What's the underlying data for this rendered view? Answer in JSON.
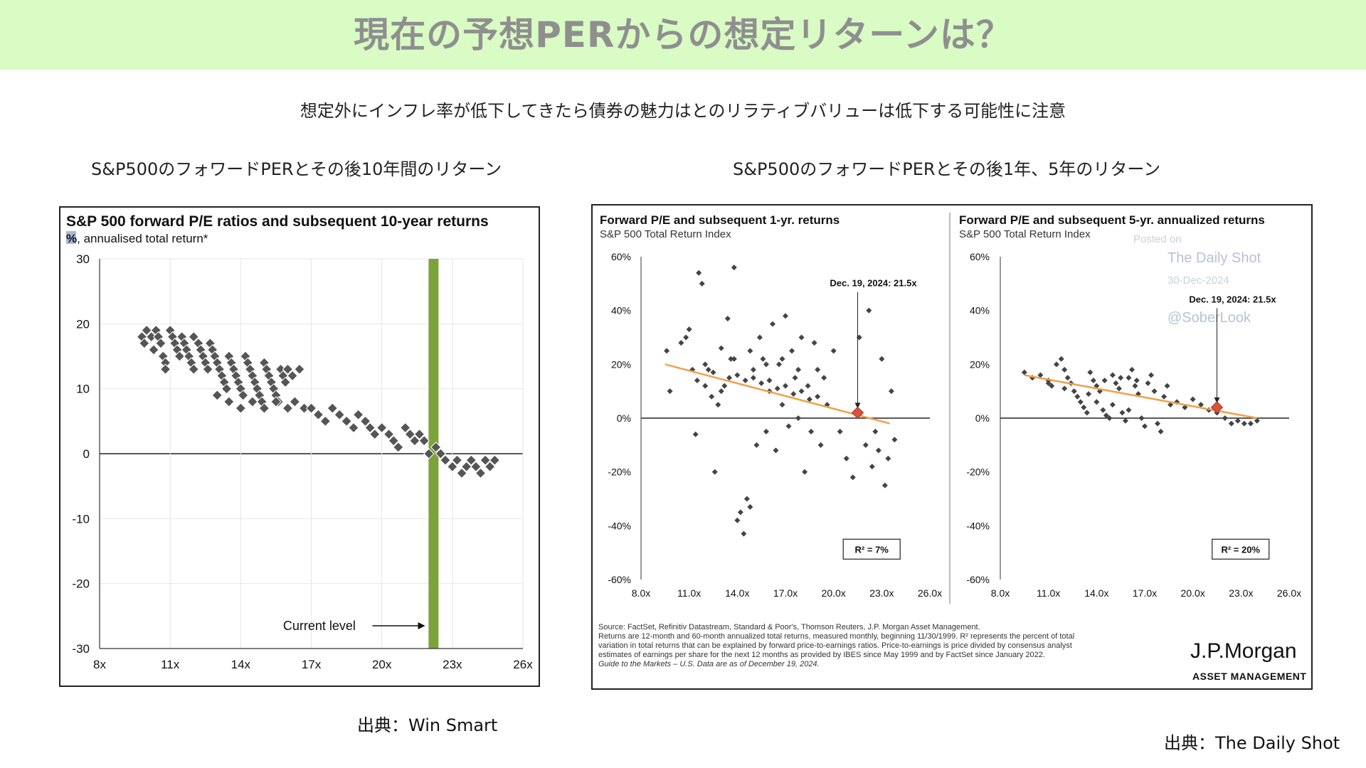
{
  "header": {
    "title": "現在の予想PERからの想定リターンは？"
  },
  "subtitle": "想定外にインフレ率が低下してきたら債券の魅力はとのリラティブバリューは低下する可能性に注意",
  "left_caption": "S&P500のフォワードPERとその後10年間のリターン",
  "right_caption": "S&P500のフォワードPERとその後1年、5年のリターン",
  "left_source": "出典：Win Smart",
  "right_source": "出典：The Daily Shot",
  "colors": {
    "header_bg": "#d9fbc4",
    "point": "#555555",
    "current_bar": "#7ca33a",
    "trend": "#f0a04b",
    "marker": "#d9533a"
  },
  "chart_data": [
    {
      "type": "scatter",
      "title": "S&P 500 forward P/E ratios and subsequent 10-year returns",
      "subtitle_mark": "%",
      "subtitle_rest": ", annualised total return*",
      "xlim": [
        8,
        26
      ],
      "ylim": [
        -30,
        30
      ],
      "xticks": [
        "8x",
        "11x",
        "14x",
        "17x",
        "20x",
        "23x",
        "26x"
      ],
      "xtick_values": [
        8,
        11,
        14,
        17,
        20,
        23,
        26
      ],
      "yticks": [
        "30",
        "20",
        "10",
        "0",
        "-10",
        "-20",
        "-30"
      ],
      "ytick_values": [
        30,
        20,
        10,
        0,
        -10,
        -20,
        -30
      ],
      "current_level": 22.2,
      "annotation": "Current level",
      "points": [
        [
          9.8,
          18
        ],
        [
          9.9,
          17
        ],
        [
          10.0,
          19
        ],
        [
          10.2,
          18
        ],
        [
          10.3,
          16
        ],
        [
          10.4,
          19
        ],
        [
          10.5,
          18
        ],
        [
          10.6,
          17
        ],
        [
          10.7,
          15
        ],
        [
          10.8,
          14
        ],
        [
          10.8,
          13
        ],
        [
          11.0,
          19
        ],
        [
          11.1,
          18
        ],
        [
          11.2,
          17
        ],
        [
          11.3,
          16
        ],
        [
          11.4,
          15
        ],
        [
          11.5,
          18
        ],
        [
          11.6,
          17
        ],
        [
          11.7,
          16
        ],
        [
          11.8,
          15
        ],
        [
          11.9,
          14
        ],
        [
          12.0,
          13
        ],
        [
          12.0,
          18
        ],
        [
          12.2,
          17
        ],
        [
          12.3,
          16
        ],
        [
          12.4,
          15
        ],
        [
          12.5,
          14
        ],
        [
          12.6,
          13
        ],
        [
          12.7,
          17
        ],
        [
          12.8,
          16
        ],
        [
          12.9,
          15
        ],
        [
          13.0,
          14
        ],
        [
          13.1,
          13
        ],
        [
          13.2,
          12
        ],
        [
          13.3,
          11
        ],
        [
          13.4,
          10
        ],
        [
          13.5,
          15
        ],
        [
          13.6,
          14
        ],
        [
          13.7,
          13
        ],
        [
          13.8,
          12
        ],
        [
          13.9,
          11
        ],
        [
          14.0,
          10
        ],
        [
          14.1,
          9
        ],
        [
          14.2,
          15
        ],
        [
          14.3,
          14
        ],
        [
          14.4,
          13
        ],
        [
          14.5,
          12
        ],
        [
          14.6,
          11
        ],
        [
          14.7,
          10
        ],
        [
          14.8,
          9
        ],
        [
          14.9,
          8
        ],
        [
          15.0,
          14
        ],
        [
          15.1,
          13
        ],
        [
          15.2,
          12
        ],
        [
          15.3,
          11
        ],
        [
          15.4,
          10
        ],
        [
          15.5,
          9
        ],
        [
          15.6,
          8
        ],
        [
          15.7,
          13
        ],
        [
          15.8,
          12
        ],
        [
          15.9,
          11
        ],
        [
          16.0,
          13
        ],
        [
          16.2,
          12
        ],
        [
          16.5,
          13
        ],
        [
          13.0,
          9
        ],
        [
          13.5,
          8
        ],
        [
          14.0,
          7
        ],
        [
          14.5,
          8
        ],
        [
          15.0,
          7
        ],
        [
          15.5,
          8
        ],
        [
          16.0,
          7
        ],
        [
          16.3,
          8
        ],
        [
          16.7,
          7
        ],
        [
          17.0,
          7
        ],
        [
          17.3,
          6
        ],
        [
          17.6,
          5
        ],
        [
          17.9,
          7
        ],
        [
          18.2,
          6
        ],
        [
          18.5,
          5
        ],
        [
          18.8,
          4
        ],
        [
          19.0,
          6
        ],
        [
          19.3,
          5
        ],
        [
          19.5,
          4
        ],
        [
          19.7,
          3
        ],
        [
          20.0,
          4
        ],
        [
          20.3,
          3
        ],
        [
          20.5,
          2
        ],
        [
          20.7,
          1
        ],
        [
          21.0,
          4
        ],
        [
          21.2,
          3
        ],
        [
          21.4,
          2
        ],
        [
          21.6,
          3
        ],
        [
          21.8,
          2
        ],
        [
          22.0,
          0
        ],
        [
          22.3,
          1
        ],
        [
          22.5,
          0
        ],
        [
          22.7,
          -1
        ],
        [
          23.0,
          -2
        ],
        [
          23.2,
          -1
        ],
        [
          23.4,
          -3
        ],
        [
          23.6,
          -2
        ],
        [
          23.8,
          -1
        ],
        [
          24.0,
          -2
        ],
        [
          24.2,
          -3
        ],
        [
          24.4,
          -1
        ],
        [
          24.6,
          -2
        ],
        [
          24.8,
          -1
        ]
      ]
    },
    {
      "type": "scatter",
      "title": "Forward P/E and subsequent 1-yr. returns",
      "subtitle": "S&P 500 Total Return Index",
      "xlim": [
        8,
        26
      ],
      "ylim": [
        -60,
        60
      ],
      "xticks": [
        "8.0x",
        "11.0x",
        "14.0x",
        "17.0x",
        "20.0x",
        "23.0x",
        "26.0x"
      ],
      "xtick_values": [
        8,
        11,
        14,
        17,
        20,
        23,
        26
      ],
      "yticks": [
        "60%",
        "40%",
        "20%",
        "0%",
        "-20%",
        "-40%",
        "-60%"
      ],
      "ytick_values": [
        60,
        40,
        20,
        0,
        -20,
        -40,
        -60
      ],
      "annotation": "Dec. 19, 2024:  21.5x",
      "current": [
        21.5,
        2
      ],
      "trend": [
        [
          9.5,
          20
        ],
        [
          23.5,
          -2
        ]
      ],
      "r2_label": "R² = 7%",
      "points": [
        [
          9.6,
          25
        ],
        [
          9.8,
          10
        ],
        [
          10.5,
          28
        ],
        [
          10.8,
          30
        ],
        [
          11.0,
          33
        ],
        [
          11.2,
          18
        ],
        [
          11.4,
          -6
        ],
        [
          11.6,
          54
        ],
        [
          11.8,
          50
        ],
        [
          12.0,
          20
        ],
        [
          12.2,
          18
        ],
        [
          12.4,
          8
        ],
        [
          12.6,
          -20
        ],
        [
          12.8,
          5
        ],
        [
          13.0,
          26
        ],
        [
          13.2,
          12
        ],
        [
          13.4,
          37
        ],
        [
          13.6,
          22
        ],
        [
          13.8,
          56
        ],
        [
          14.0,
          -38
        ],
        [
          14.2,
          -35
        ],
        [
          14.4,
          -43
        ],
        [
          14.6,
          -30
        ],
        [
          14.8,
          -33
        ],
        [
          15.0,
          15
        ],
        [
          15.2,
          -10
        ],
        [
          15.4,
          30
        ],
        [
          15.6,
          22
        ],
        [
          15.8,
          -5
        ],
        [
          16.0,
          10
        ],
        [
          16.2,
          35
        ],
        [
          16.4,
          -12
        ],
        [
          16.6,
          20
        ],
        [
          16.8,
          5
        ],
        [
          17.0,
          38
        ],
        [
          17.2,
          -3
        ],
        [
          17.4,
          25
        ],
        [
          17.6,
          15
        ],
        [
          17.8,
          0
        ],
        [
          18.0,
          30
        ],
        [
          18.2,
          -20
        ],
        [
          18.4,
          12
        ],
        [
          18.6,
          -5
        ],
        [
          18.8,
          28
        ],
        [
          19.0,
          8
        ],
        [
          19.2,
          -10
        ],
        [
          19.4,
          15
        ],
        [
          19.6,
          5
        ],
        [
          20.0,
          25
        ],
        [
          20.4,
          -5
        ],
        [
          20.8,
          -15
        ],
        [
          21.2,
          -22
        ],
        [
          21.6,
          30
        ],
        [
          22.0,
          -10
        ],
        [
          22.2,
          40
        ],
        [
          22.4,
          -18
        ],
        [
          22.6,
          -5
        ],
        [
          22.8,
          -12
        ],
        [
          23.0,
          22
        ],
        [
          23.2,
          -25
        ],
        [
          23.4,
          -15
        ],
        [
          23.6,
          10
        ],
        [
          23.8,
          -8
        ],
        [
          11.5,
          14
        ],
        [
          12.5,
          17
        ],
        [
          13.5,
          15
        ],
        [
          14.5,
          14
        ],
        [
          15.5,
          13
        ],
        [
          16.5,
          11
        ],
        [
          17.5,
          9
        ],
        [
          18.5,
          7
        ],
        [
          12.0,
          12
        ],
        [
          13.0,
          10
        ],
        [
          14.0,
          16
        ],
        [
          15.0,
          18
        ],
        [
          16.0,
          14
        ],
        [
          17.0,
          12
        ],
        [
          18.0,
          10
        ],
        [
          19.0,
          18
        ],
        [
          13.8,
          22
        ],
        [
          14.8,
          25
        ],
        [
          15.8,
          20
        ],
        [
          16.8,
          22
        ],
        [
          17.8,
          18
        ]
      ]
    },
    {
      "type": "scatter",
      "title": "Forward P/E and subsequent 5-yr. annualized returns",
      "subtitle": "S&P 500 Total Return Index",
      "watermark": [
        "Posted on",
        "The Daily Shot",
        "30-Dec-2024",
        "@SoberLook"
      ],
      "xlim": [
        8,
        26
      ],
      "ylim": [
        -60,
        60
      ],
      "xticks": [
        "8.0x",
        "11.0x",
        "14.0x",
        "17.0x",
        "20.0x",
        "23.0x",
        "26.0x"
      ],
      "xtick_values": [
        8,
        11,
        14,
        17,
        20,
        23,
        26
      ],
      "yticks": [
        "60%",
        "40%",
        "20%",
        "0%",
        "-20%",
        "-40%",
        "-60%"
      ],
      "ytick_values": [
        60,
        40,
        20,
        0,
        -20,
        -40,
        -60
      ],
      "annotation": "Dec. 19, 2024:  21.5x",
      "current": [
        21.5,
        4
      ],
      "trend": [
        [
          9.5,
          16
        ],
        [
          24.0,
          0
        ]
      ],
      "r2_label": "R² = 20%",
      "points": [
        [
          9.5,
          17
        ],
        [
          10.0,
          15
        ],
        [
          10.5,
          16
        ],
        [
          11.0,
          14
        ],
        [
          11.2,
          12
        ],
        [
          11.5,
          20
        ],
        [
          11.8,
          22
        ],
        [
          12.0,
          18
        ],
        [
          12.2,
          15
        ],
        [
          12.4,
          13
        ],
        [
          12.6,
          10
        ],
        [
          12.8,
          8
        ],
        [
          13.0,
          6
        ],
        [
          13.2,
          4
        ],
        [
          13.4,
          2
        ],
        [
          13.6,
          17
        ],
        [
          13.8,
          14
        ],
        [
          14.0,
          12
        ],
        [
          14.2,
          10
        ],
        [
          14.4,
          3
        ],
        [
          14.6,
          1
        ],
        [
          14.8,
          0
        ],
        [
          15.0,
          16
        ],
        [
          15.2,
          13
        ],
        [
          15.4,
          11
        ],
        [
          15.6,
          2
        ],
        [
          15.8,
          -1
        ],
        [
          16.0,
          15
        ],
        [
          16.2,
          18
        ],
        [
          16.4,
          12
        ],
        [
          16.6,
          9
        ],
        [
          16.8,
          0
        ],
        [
          17.0,
          -3
        ],
        [
          17.2,
          13
        ],
        [
          17.4,
          16
        ],
        [
          17.6,
          10
        ],
        [
          17.8,
          -2
        ],
        [
          18.0,
          -5
        ],
        [
          18.2,
          8
        ],
        [
          18.4,
          12
        ],
        [
          18.6,
          5
        ],
        [
          19.0,
          6
        ],
        [
          19.5,
          4
        ],
        [
          20.0,
          7
        ],
        [
          20.5,
          5
        ],
        [
          21.0,
          3
        ],
        [
          21.5,
          2
        ],
        [
          22.0,
          0
        ],
        [
          22.4,
          -2
        ],
        [
          22.8,
          -1
        ],
        [
          23.2,
          -2
        ],
        [
          23.6,
          -2
        ],
        [
          24.0,
          -1
        ],
        [
          14.5,
          14
        ],
        [
          15.5,
          15
        ],
        [
          16.5,
          14
        ],
        [
          13.5,
          9
        ],
        [
          14.0,
          6
        ],
        [
          15.0,
          5
        ],
        [
          16.0,
          3
        ],
        [
          12.0,
          11
        ],
        [
          11.0,
          13
        ]
      ]
    }
  ],
  "footnote": [
    "Source: FactSet, Refinitiv Datastream, Standard & Poor's, Thomson Reuters, J.P. Morgan Asset Management.",
    "Returns are 12-month and 60-month annualized total returns, measured monthly, beginning 11/30/1999. R² represents the percent of total",
    "variation in total returns that can be explained by forward price-to-earnings ratios. Price-to-earnings is price divided by consensus analyst",
    "estimates of earnings per share for the next 12 months as provided by IBES since May 1999 and by FactSet since January 2022.",
    "Guide to the Markets – U.S. Data are as of December 19, 2024."
  ],
  "logo": {
    "name": "J.P.Morgan",
    "sub": "ASSET MANAGEMENT"
  }
}
